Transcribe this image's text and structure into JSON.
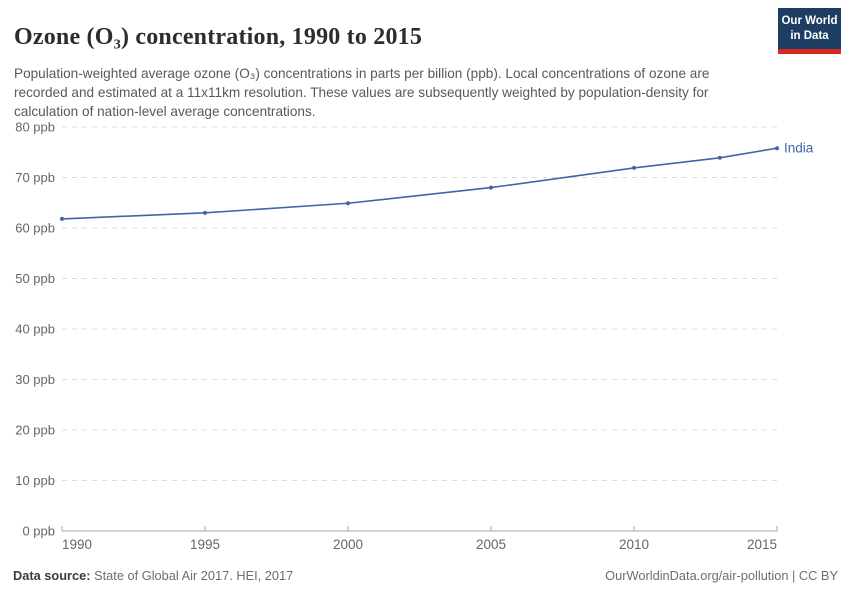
{
  "header": {
    "title": "Ozone (O₃) concentration, 1990 to 2015",
    "subtitle": "Population-weighted average ozone (O₃) concentrations in parts per billion (ppb). Local concentrations of ozone are recorded and estimated at a 11x11km resolution. These values are subsequently weighted by population-density for calculation of nation-level average concentrations."
  },
  "logo": {
    "line1": "Our World",
    "line2": "in Data",
    "bg_color": "#1d3d63",
    "accent_color": "#d7291f"
  },
  "chart_data": {
    "type": "line",
    "title": "Ozone (O₃) concentration, 1990 to 2015",
    "xlabel": "",
    "ylabel": "",
    "xlim": [
      1990,
      2015
    ],
    "ylim": [
      0,
      80
    ],
    "x_ticks": [
      1990,
      1995,
      2000,
      2005,
      2010,
      2015
    ],
    "y_ticks": [
      0,
      10,
      20,
      30,
      40,
      50,
      60,
      70,
      80
    ],
    "y_tick_suffix": " ppb",
    "grid": "horizontal-dashed",
    "legend": "end-of-line-label",
    "series": [
      {
        "name": "India",
        "color": "#4166a5",
        "x": [
          1990,
          1995,
          2000,
          2005,
          2010,
          2013,
          2015
        ],
        "y": [
          61.8,
          63.0,
          64.9,
          68.0,
          71.9,
          73.9,
          75.8
        ]
      }
    ]
  },
  "footer": {
    "source_label": "Data source:",
    "source_text": " State of Global Air 2017. HEI, 2017",
    "link_text": "OurWorldinData.org/air-pollution",
    "separator": " | ",
    "license_text": "CC BY"
  },
  "colors": {
    "grid": "#dcdcdc",
    "axis": "#a7a7a7",
    "tick_label": "#666666",
    "title_text": "#2d2d2d",
    "subtitle_text": "#595959"
  }
}
